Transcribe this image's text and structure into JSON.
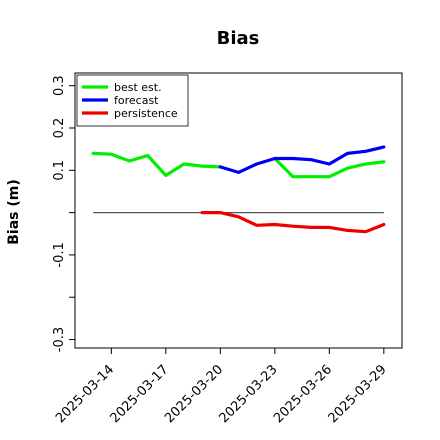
{
  "chart_data": {
    "type": "line",
    "title": "Bias",
    "xlabel": "",
    "ylabel": "Bias (m)",
    "ylim": [
      -0.32,
      0.33
    ],
    "yticks": [
      -0.3,
      -0.1,
      0.1,
      0.2,
      0.3
    ],
    "yticks_minor": [
      -0.2,
      0.0
    ],
    "ytick_labels": [
      "-0.3",
      "-0.1",
      "0.1",
      "0.2",
      "0.3"
    ],
    "xlim": [
      "2025-03-12",
      "2025-03-30"
    ],
    "xticks": [
      "2025-03-14",
      "2025-03-17",
      "2025-03-20",
      "2025-03-23",
      "2025-03-26",
      "2025-03-29"
    ],
    "xtick_colors": [
      "#000000",
      "#000000",
      "#228B22",
      "#000000",
      "#000000",
      "#000000"
    ],
    "reference_line": {
      "y": 0.0,
      "from": "2025-03-13",
      "to": "2025-03-29",
      "color": "#555555"
    },
    "legend": {
      "position": "top-left"
    },
    "grid": false,
    "series": [
      {
        "name": "best est.",
        "color": "#00ee00",
        "x": [
          "2025-03-13",
          "2025-03-14",
          "2025-03-15",
          "2025-03-16",
          "2025-03-17",
          "2025-03-18",
          "2025-03-19",
          "2025-03-20",
          "2025-03-20",
          "2025-03-21",
          "2025-03-22",
          "2025-03-23",
          "2025-03-24",
          "2025-03-25",
          "2025-03-26",
          "2025-03-27",
          "2025-03-28",
          "2025-03-29"
        ],
        "values": [
          0.14,
          0.138,
          0.122,
          0.135,
          0.088,
          0.115,
          0.11,
          0.108,
          null,
          null,
          null,
          0.128,
          0.085,
          0.085,
          0.085,
          0.105,
          0.115,
          0.12
        ]
      },
      {
        "name": "forecast",
        "color": "#0000ee",
        "x": [
          "2025-03-20",
          "2025-03-21",
          "2025-03-22",
          "2025-03-23",
          "2025-03-24",
          "2025-03-25",
          "2025-03-26",
          "2025-03-27",
          "2025-03-28",
          "2025-03-29"
        ],
        "values": [
          0.108,
          0.095,
          0.115,
          0.128,
          0.128,
          0.125,
          0.115,
          0.14,
          0.145,
          0.155
        ]
      },
      {
        "name": "persistence",
        "color": "#ee0000",
        "x": [
          "2025-03-19",
          "2025-03-20",
          "2025-03-21",
          "2025-03-22",
          "2025-03-23",
          "2025-03-24",
          "2025-03-25",
          "2025-03-26",
          "2025-03-27",
          "2025-03-28",
          "2025-03-29"
        ],
        "values": [
          0.0,
          0.0,
          -0.01,
          -0.03,
          -0.028,
          -0.032,
          -0.035,
          -0.035,
          -0.042,
          -0.045,
          -0.028
        ]
      }
    ]
  }
}
